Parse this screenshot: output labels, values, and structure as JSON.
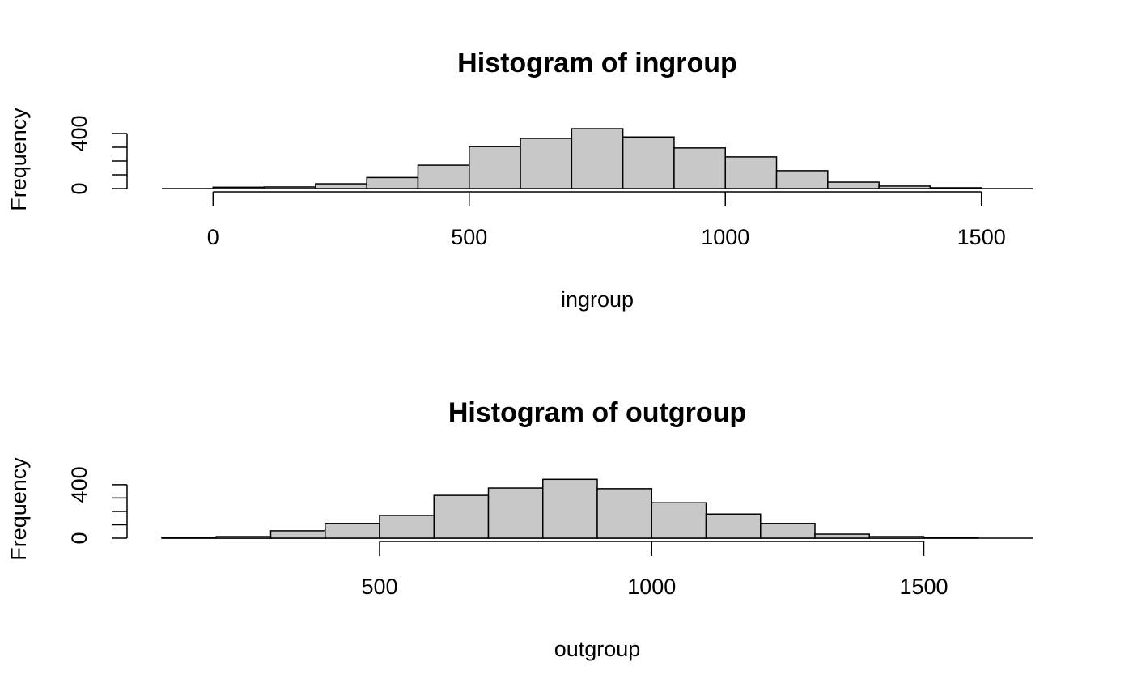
{
  "chart_data": [
    {
      "type": "histogram",
      "title": "Histogram of ingroup",
      "xlabel": "ingroup",
      "ylabel": "Frequency",
      "bins": [
        0,
        100,
        200,
        300,
        400,
        500,
        600,
        700,
        800,
        900,
        1000,
        1100,
        1200,
        1300,
        1400,
        1500
      ],
      "counts": [
        10,
        12,
        35,
        80,
        170,
        305,
        365,
        435,
        375,
        295,
        230,
        130,
        47,
        18,
        6
      ],
      "color": "#c8c8c8",
      "xlim": [
        -100,
        1600
      ],
      "ylim": [
        0,
        450
      ],
      "xticks": [
        0,
        500,
        1000,
        1500
      ],
      "yticks": [
        0,
        400
      ],
      "yminorticks": [
        100,
        200,
        300
      ]
    },
    {
      "type": "histogram",
      "title": "Histogram of outgroup",
      "xlabel": "outgroup",
      "ylabel": "Frequency",
      "bins": [
        100,
        200,
        300,
        400,
        500,
        600,
        700,
        800,
        900,
        1000,
        1100,
        1200,
        1300,
        1400,
        1500,
        1600
      ],
      "counts": [
        5,
        12,
        55,
        110,
        170,
        320,
        375,
        440,
        370,
        265,
        180,
        110,
        30,
        12,
        5
      ],
      "color": "#c8c8c8",
      "xlim": [
        100,
        1700
      ],
      "ylim": [
        0,
        460
      ],
      "xticks": [
        500,
        1000,
        1500
      ],
      "yticks": [
        0,
        400
      ],
      "yminorticks": [
        100,
        200,
        300
      ]
    }
  ]
}
